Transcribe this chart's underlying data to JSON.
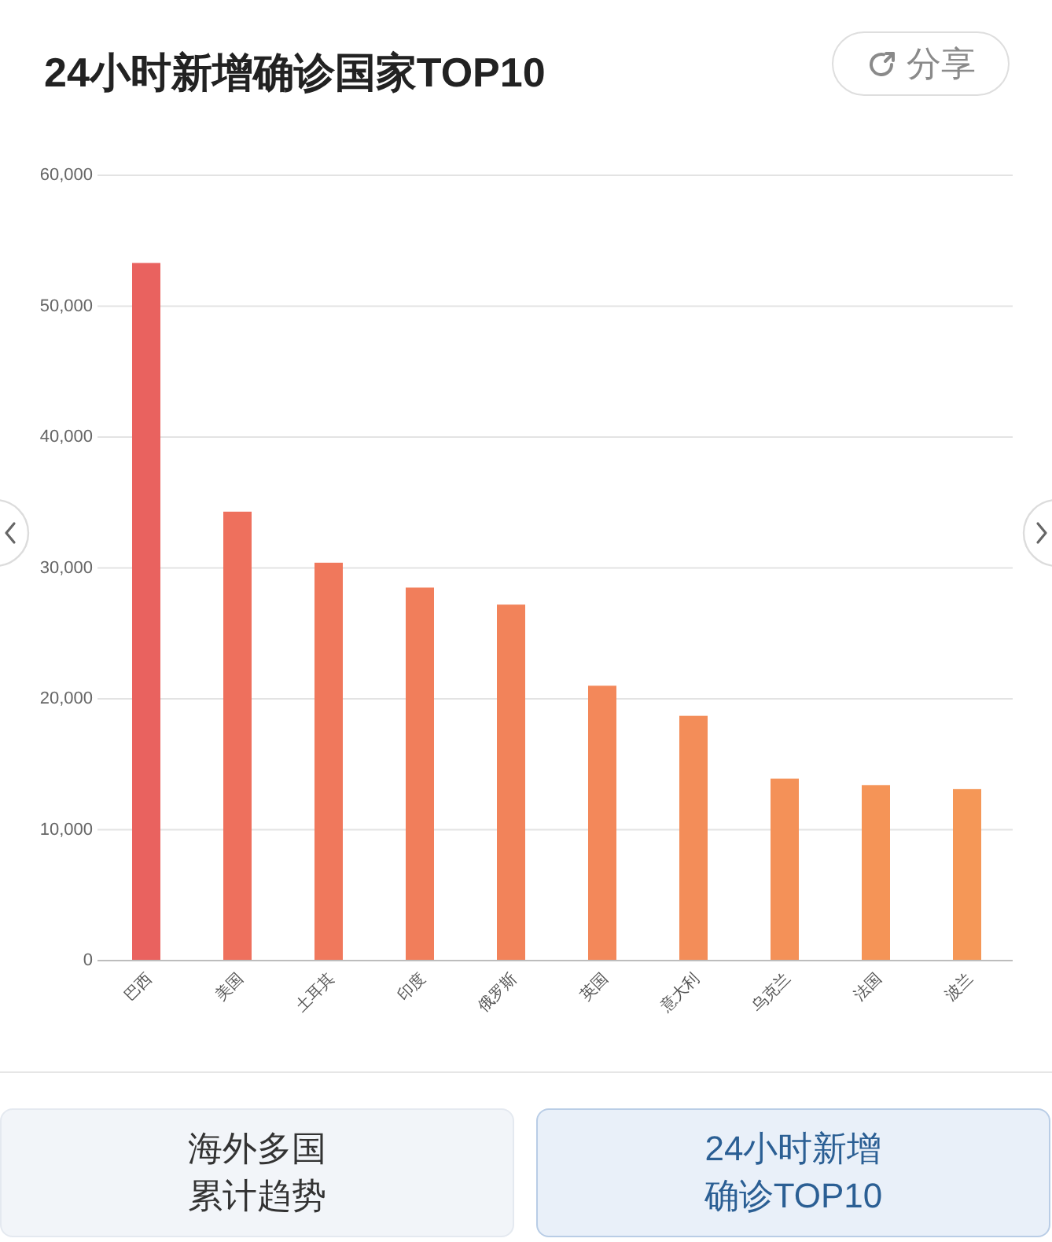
{
  "chart_data": {
    "type": "bar",
    "title": "24小时新增确诊国家TOP10",
    "categories": [
      "巴西",
      "美国",
      "土耳其",
      "印度",
      "俄罗斯",
      "英国",
      "意大利",
      "乌克兰",
      "法国",
      "波兰"
    ],
    "values": [
      53300,
      34300,
      30400,
      28500,
      27200,
      21000,
      18700,
      13900,
      13400,
      13100
    ],
    "colors": [
      "#e9625f",
      "#ee705d",
      "#f0785c",
      "#f17e5b",
      "#f2835a",
      "#f3885a",
      "#f38d59",
      "#f49158",
      "#f59457",
      "#f59757"
    ],
    "ylim": [
      0,
      60000
    ],
    "yticks": [
      0,
      {
        "value": 10000,
        "label": "10,000"
      },
      {
        "value": 20000,
        "label": "20,000"
      },
      {
        "value": 30000,
        "label": "30,000"
      },
      {
        "value": 40000,
        "label": "40,000"
      },
      {
        "value": 50000,
        "label": "50,000"
      },
      {
        "value": 60000,
        "label": "60,000"
      }
    ],
    "grid": "y",
    "annotations": [
      "分享",
      "海外多国累计趋势",
      "24小时新增确诊TOP10"
    ]
  }
}
